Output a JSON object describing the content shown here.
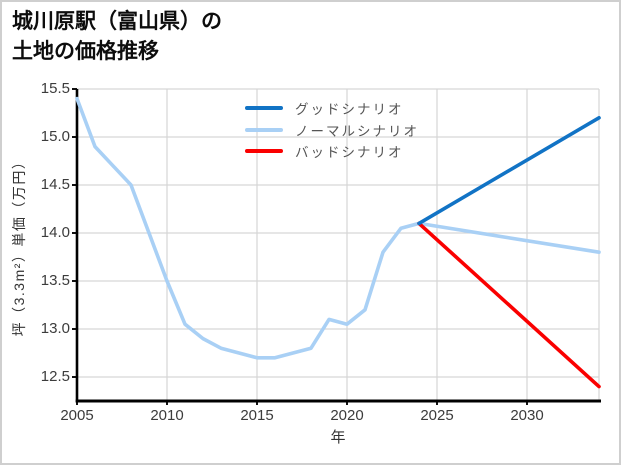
{
  "title": {
    "line1": "城川原駅（富山県）の",
    "line2": "土地の価格推移"
  },
  "chart_data": {
    "type": "line",
    "title": "城川原駅（富山県）の土地の価格推移",
    "xlabel": "年",
    "ylabel": "坪（3.3m²）単価（万円）",
    "xlim": [
      2005,
      2034
    ],
    "ylim": [
      12.25,
      15.5
    ],
    "x_ticks": [
      2005,
      2010,
      2015,
      2020,
      2025,
      2030
    ],
    "y_ticks": [
      12.5,
      13.0,
      13.5,
      14.0,
      14.5,
      15.0,
      15.5
    ],
    "grid": true,
    "legend_position": "upper center inside, no frame",
    "series": [
      {
        "name": "グッドシナリオ",
        "color": "#1173c5",
        "x": [
          2024,
          2034
        ],
        "y": [
          14.1,
          15.2
        ]
      },
      {
        "name": "ノーマルシナリオ",
        "color": "#a9d0f5",
        "x": [
          2005,
          2006,
          2007,
          2008,
          2009,
          2010,
          2011,
          2012,
          2013,
          2014,
          2015,
          2016,
          2017,
          2018,
          2019,
          2020,
          2021,
          2022,
          2023,
          2024,
          2034
        ],
        "y": [
          15.4,
          14.9,
          14.7,
          14.5,
          14.0,
          13.5,
          13.05,
          12.9,
          12.8,
          12.75,
          12.7,
          12.7,
          12.75,
          12.8,
          13.1,
          13.05,
          13.2,
          13.8,
          14.05,
          14.1,
          13.8
        ]
      },
      {
        "name": "バッドシナリオ",
        "color": "#fa0000",
        "x": [
          2024,
          2034
        ],
        "y": [
          14.1,
          12.4
        ]
      }
    ],
    "style_colors": {
      "axis": "#000000",
      "grid": "#d6d6d6",
      "tick_label": "#3c3c3c",
      "legend_text": "#555555"
    }
  }
}
